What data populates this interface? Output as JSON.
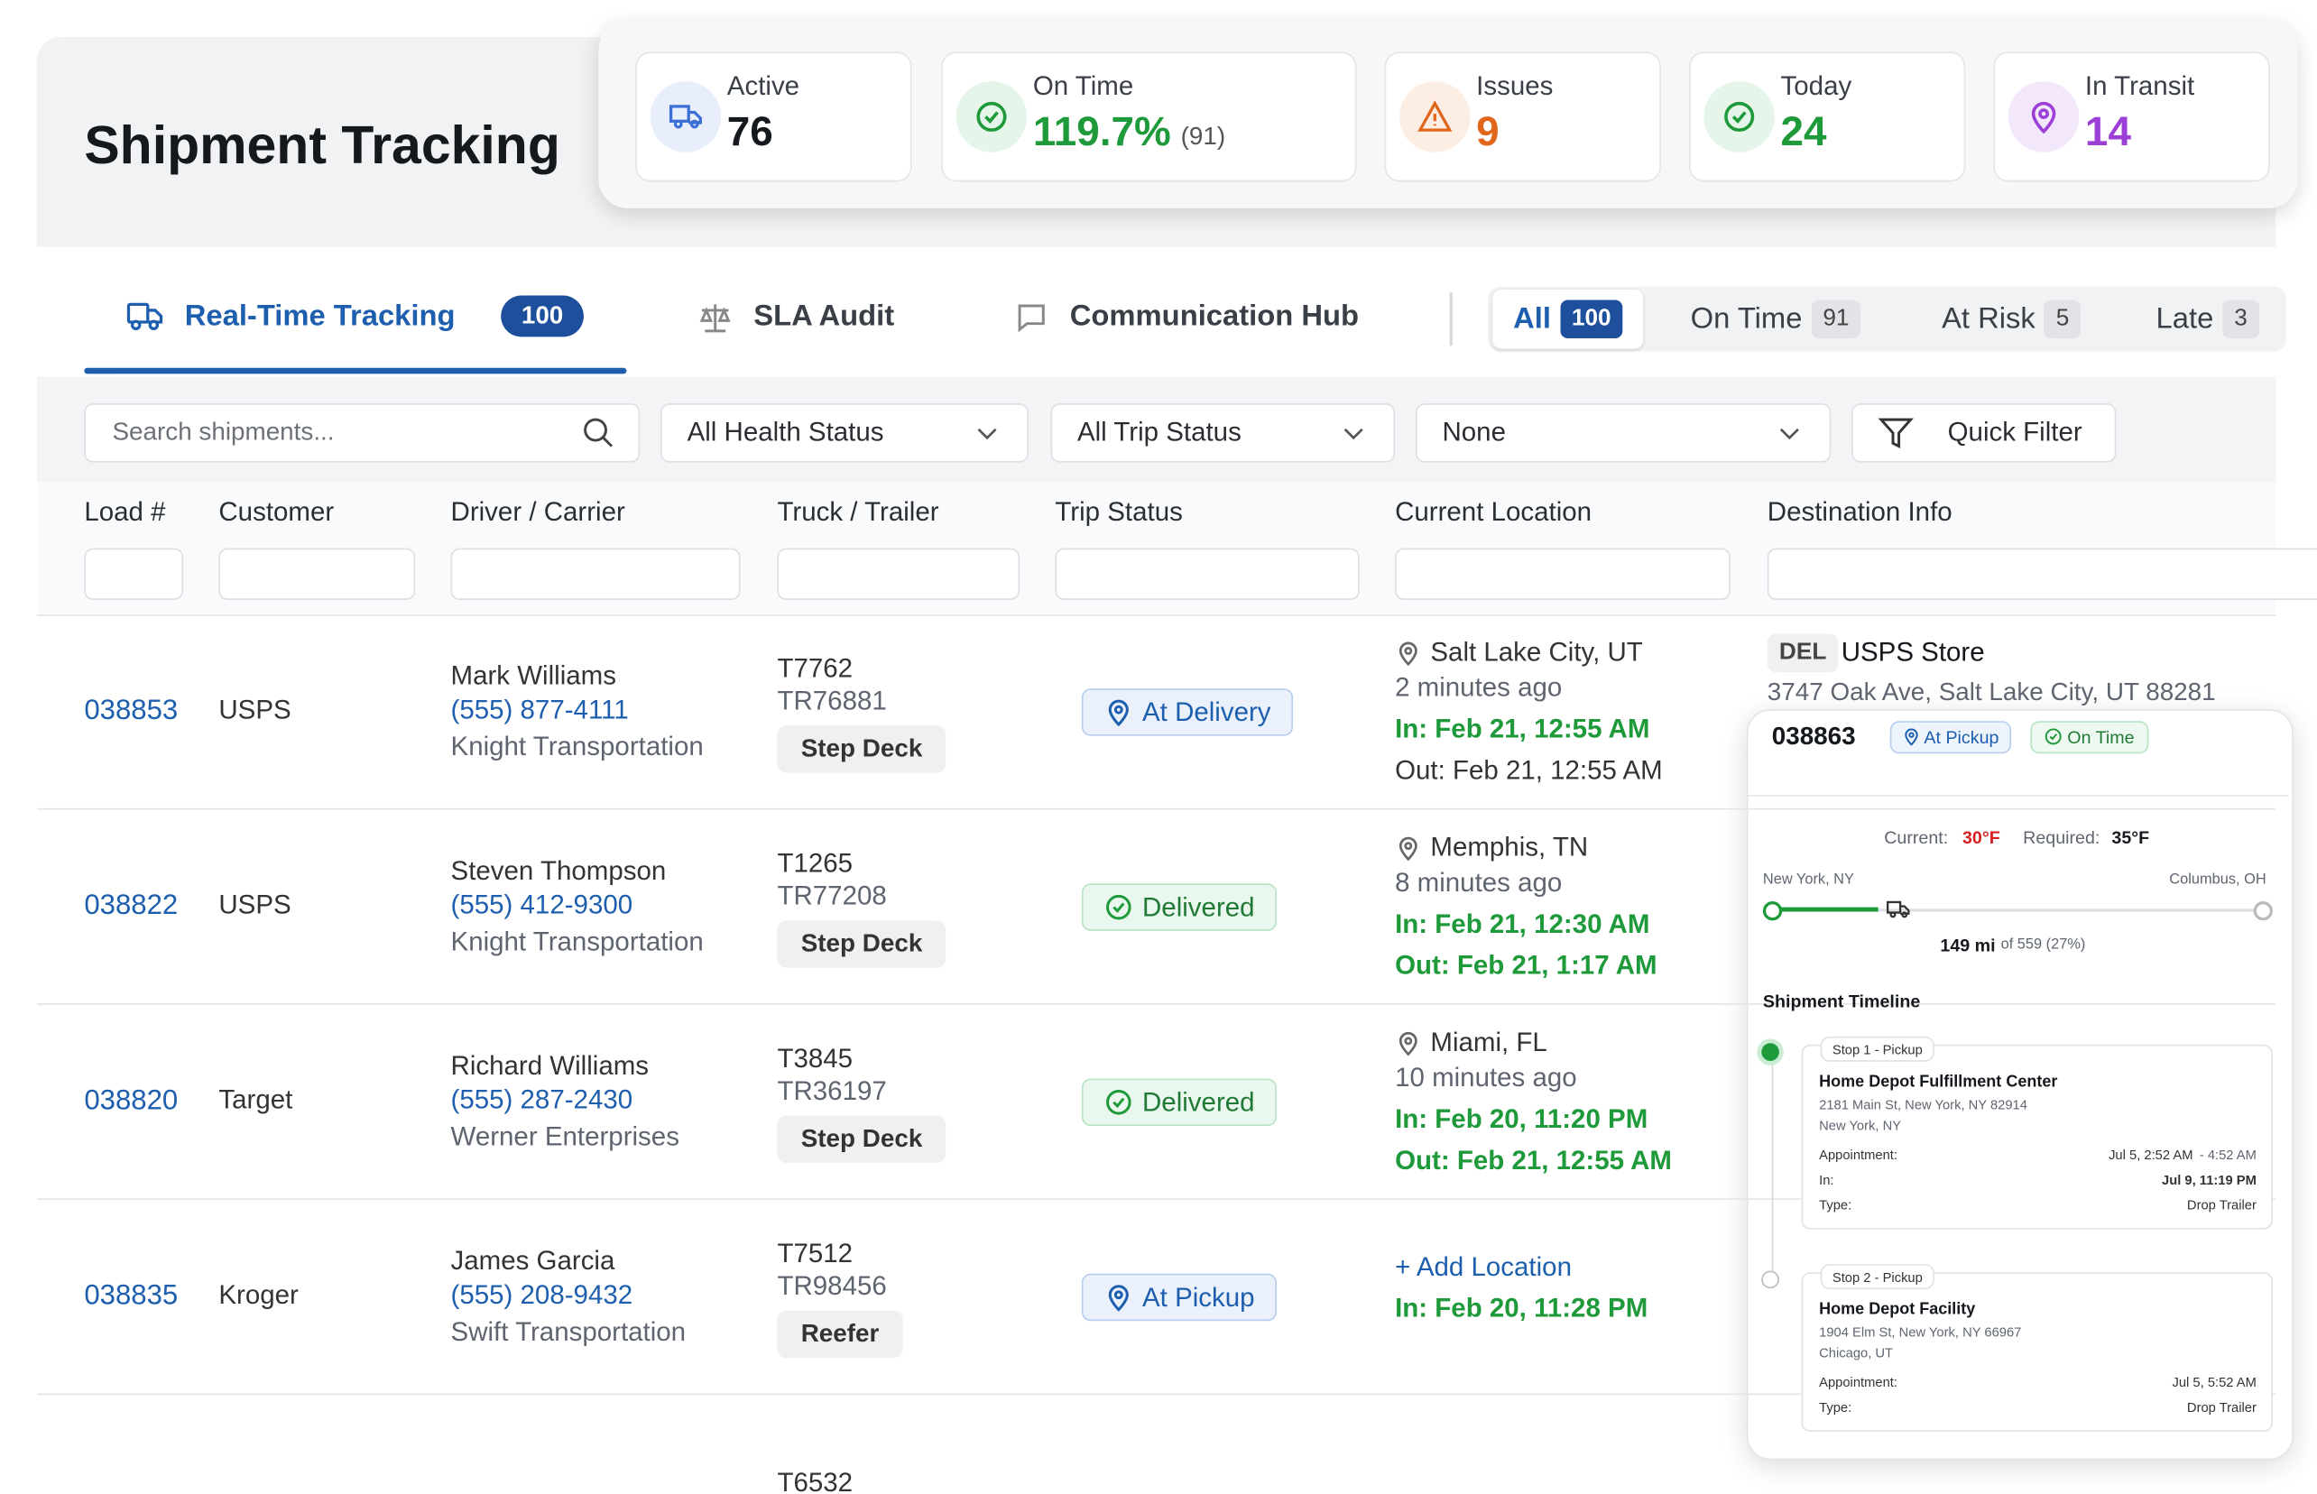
{
  "header": {
    "title": "Shipment Tracking"
  },
  "stats": [
    {
      "label": "Active",
      "value": "76"
    },
    {
      "label": "On Time",
      "value": "119.7%",
      "note": "(91)"
    },
    {
      "label": "Issues",
      "value": "9"
    },
    {
      "label": "Today",
      "value": "24"
    },
    {
      "label": "In Transit",
      "value": "14"
    }
  ],
  "tabs": [
    {
      "label": "Real-Time Tracking",
      "count": "100"
    },
    {
      "label": "SLA Audit"
    },
    {
      "label": "Communication Hub"
    }
  ],
  "status_filters": [
    {
      "label": "All",
      "count": "100"
    },
    {
      "label": "On Time",
      "count": "91"
    },
    {
      "label": "At Risk",
      "count": "5"
    },
    {
      "label": "Late",
      "count": "3"
    }
  ],
  "toolbar": {
    "search_placeholder": "Search shipments...",
    "health": "All Health Status",
    "trip": "All Trip Status",
    "group": "None",
    "quick_filter": "Quick Filter"
  },
  "table": {
    "columns": [
      "Load #",
      "Customer",
      "Driver / Carrier",
      "Truck / Trailer",
      "Trip Status",
      "Current Location",
      "Destination Info"
    ],
    "rows": [
      {
        "load": "038853",
        "customer": "USPS",
        "driver": "Mark Williams",
        "phone": "(555) 877-4111",
        "carrier": "Knight Transportation",
        "truck": "T7762",
        "trailer": "TR76881",
        "equipment": "Step Deck",
        "status": "At Delivery",
        "location": "Salt Lake City, UT",
        "ago": "2 minutes ago",
        "in": "In: Feb 21, 12:55 AM",
        "out": "Out: Feb 21, 12:55 AM",
        "dest_type": "DEL",
        "dest_name": "USPS Store",
        "dest_address": "3747 Oak Ave, Salt Lake City, UT 88281"
      },
      {
        "load": "038822",
        "customer": "USPS",
        "driver": "Steven Thompson",
        "phone": "(555) 412-9300",
        "carrier": "Knight Transportation",
        "truck": "T1265",
        "trailer": "TR77208",
        "equipment": "Step Deck",
        "status": "Delivered",
        "location": "Memphis, TN",
        "ago": "8 minutes ago",
        "in": "In: Feb 21, 12:30 AM",
        "out": "Out: Feb 21, 1:17 AM"
      },
      {
        "load": "038820",
        "customer": "Target",
        "driver": "Richard Williams",
        "phone": "(555) 287-2430",
        "carrier": "Werner Enterprises",
        "truck": "T3845",
        "trailer": "TR36197",
        "equipment": "Step Deck",
        "status": "Delivered",
        "location": "Miami, FL",
        "ago": "10 minutes ago",
        "in": "In: Feb 20, 11:20 PM",
        "out": "Out: Feb 21, 12:55 AM"
      },
      {
        "load": "038835",
        "customer": "Kroger",
        "driver": "James Garcia",
        "phone": "(555) 208-9432",
        "carrier": "Swift Transportation",
        "truck": "T7512",
        "trailer": "TR98456",
        "equipment": "Reefer",
        "status": "At Pickup",
        "location": "+ Add Location",
        "in": "In: Feb 20, 11:28 PM"
      },
      {
        "truck": "T6532"
      }
    ]
  },
  "popup": {
    "load": "038863",
    "status": "At Pickup",
    "health": "On Time",
    "current_label": "Current:",
    "current": "30°F",
    "required_label": "Required:",
    "required": "35°F",
    "origin": "New York, NY",
    "destination": "Columbus, OH",
    "miles": "149 mi",
    "miles_total": "of 559 (27%)",
    "timeline_title": "Shipment Timeline",
    "stops": [
      {
        "tag": "Stop 1 - Pickup",
        "name": "Home Depot Fulfillment Center",
        "address": "2181 Main St, New York, NY 82914",
        "city": "New York, NY",
        "appointment_label": "Appointment:",
        "appointment": "Jul 5, 2:52 AM",
        "appointment_end": "- 4:52 AM",
        "in_label": "In:",
        "in": "Jul 9, 11:19 PM",
        "type_label": "Type:",
        "type": "Drop Trailer"
      },
      {
        "tag": "Stop 2 - Pickup",
        "name": "Home Depot Facility",
        "address": "1904 Elm St, New York, NY 66967",
        "city": "Chicago, UT",
        "appointment_label": "Appointment:",
        "appointment": "Jul 5, 5:52 AM",
        "type_label": "Type:",
        "type": "Drop Trailer"
      }
    ]
  }
}
